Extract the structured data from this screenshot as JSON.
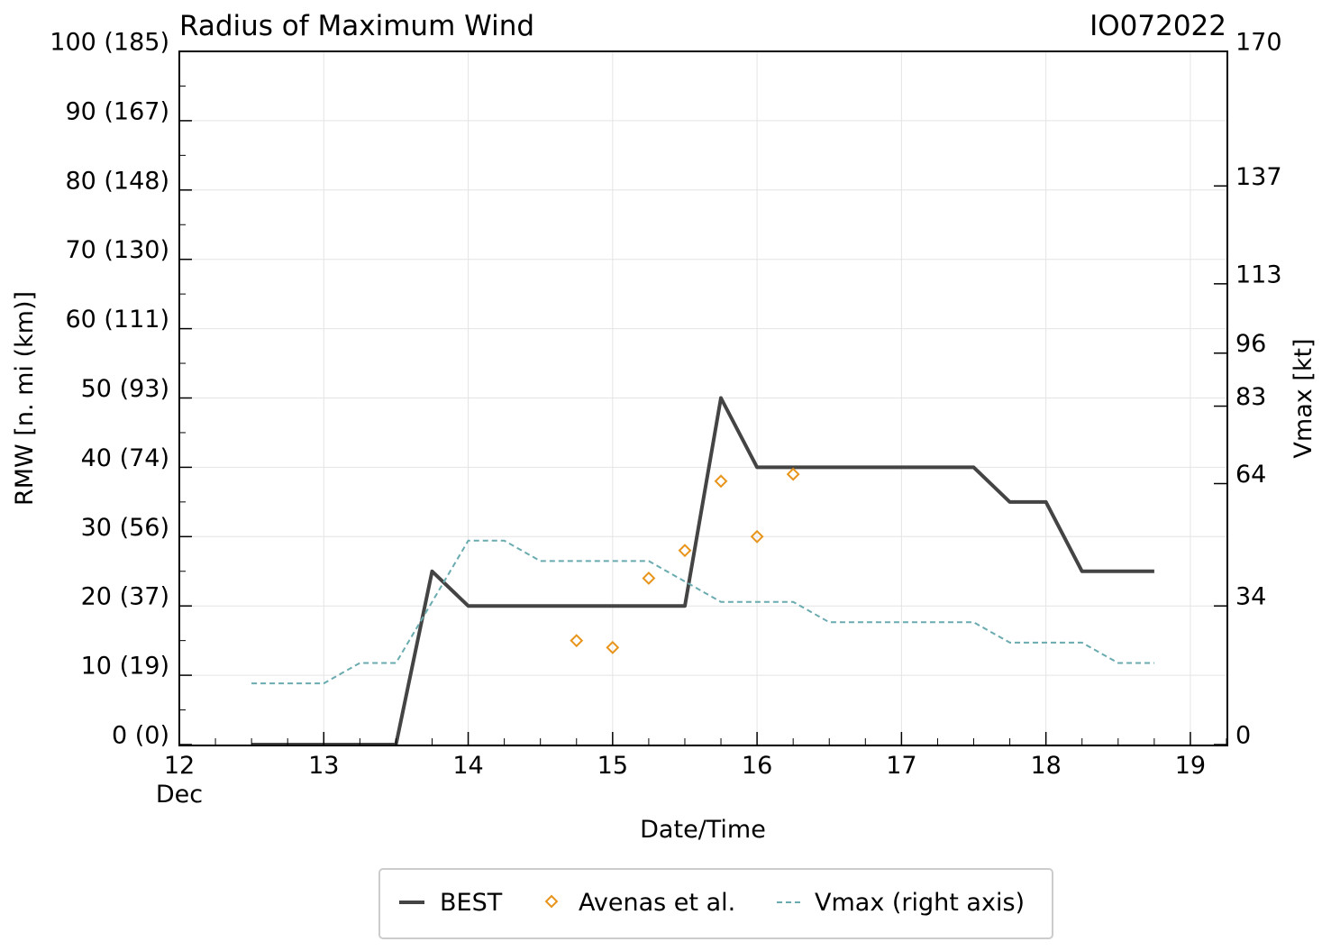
{
  "chart_data": {
    "type": "line",
    "title": "Radius of Maximum Wind",
    "storm_id": "IO072022",
    "xlabel": "Date/Time",
    "ylabel": "RMW [n. mi (km)]",
    "y2label": "Vmax [kt]",
    "xlim": [
      12,
      19.25
    ],
    "ylim": [
      0,
      100
    ],
    "y2lim": [
      0,
      170
    ],
    "x_ticks": [
      {
        "value": 12,
        "label": "12",
        "sublabel": "Dec"
      },
      {
        "value": 13,
        "label": "13"
      },
      {
        "value": 14,
        "label": "14"
      },
      {
        "value": 15,
        "label": "15"
      },
      {
        "value": 16,
        "label": "16"
      },
      {
        "value": 17,
        "label": "17"
      },
      {
        "value": 18,
        "label": "18"
      },
      {
        "value": 19,
        "label": "19"
      }
    ],
    "y_ticks": [
      {
        "value": 0,
        "label": "0 (0)"
      },
      {
        "value": 10,
        "label": "10 (19)"
      },
      {
        "value": 20,
        "label": "20 (37)"
      },
      {
        "value": 30,
        "label": "30 (56)"
      },
      {
        "value": 40,
        "label": "40 (74)"
      },
      {
        "value": 50,
        "label": "50 (93)"
      },
      {
        "value": 60,
        "label": "60 (111)"
      },
      {
        "value": 70,
        "label": "70 (130)"
      },
      {
        "value": 80,
        "label": "80 (148)"
      },
      {
        "value": 90,
        "label": "90 (167)"
      },
      {
        "value": 100,
        "label": "100 (185)"
      }
    ],
    "y2_ticks": [
      {
        "value": 0,
        "label": "0"
      },
      {
        "value": 34,
        "label": "34"
      },
      {
        "value": 64,
        "label": "64"
      },
      {
        "value": 83,
        "label": "83"
      },
      {
        "value": 96,
        "label": "96"
      },
      {
        "value": 113,
        "label": "113"
      },
      {
        "value": 137,
        "label": "137"
      },
      {
        "value": 170,
        "label": "170"
      }
    ],
    "grid": true,
    "legend_position": "bottom-center",
    "series": [
      {
        "name": "BEST",
        "kind": "line",
        "color": "#444444",
        "x": [
          12.5,
          12.75,
          13.0,
          13.25,
          13.5,
          13.75,
          14.0,
          14.25,
          14.5,
          14.75,
          15.0,
          15.25,
          15.5,
          15.75,
          16.0,
          16.25,
          16.5,
          16.75,
          17.0,
          17.25,
          17.5,
          17.75,
          18.0,
          18.25,
          18.5,
          18.75
        ],
        "y": [
          0,
          0,
          0,
          0,
          0,
          25,
          20,
          20,
          20,
          20,
          20,
          20,
          20,
          50,
          40,
          40,
          40,
          40,
          40,
          40,
          40,
          35,
          35,
          25,
          25,
          25
        ]
      },
      {
        "name": "Avenas et al.",
        "kind": "scatter",
        "color": "#e8941a",
        "x": [
          14.75,
          15.0,
          15.25,
          15.5,
          15.75,
          16.0,
          16.25
        ],
        "y": [
          15,
          14,
          24,
          28,
          38,
          30,
          39
        ]
      },
      {
        "name": "Vmax (right axis)",
        "kind": "dashed-line",
        "axis": "right",
        "color": "#6aabb0",
        "x": [
          12.5,
          12.75,
          13.0,
          13.25,
          13.5,
          13.75,
          14.0,
          14.25,
          14.5,
          14.75,
          15.0,
          15.25,
          15.5,
          15.75,
          16.0,
          16.25,
          16.5,
          16.75,
          17.0,
          17.25,
          17.5,
          17.75,
          18.0,
          18.25,
          18.5,
          18.75
        ],
        "y": [
          15,
          15,
          15,
          20,
          20,
          35,
          50,
          50,
          45,
          45,
          45,
          45,
          40,
          35,
          35,
          35,
          30,
          30,
          30,
          30,
          30,
          25,
          25,
          25,
          20,
          20
        ]
      }
    ]
  }
}
